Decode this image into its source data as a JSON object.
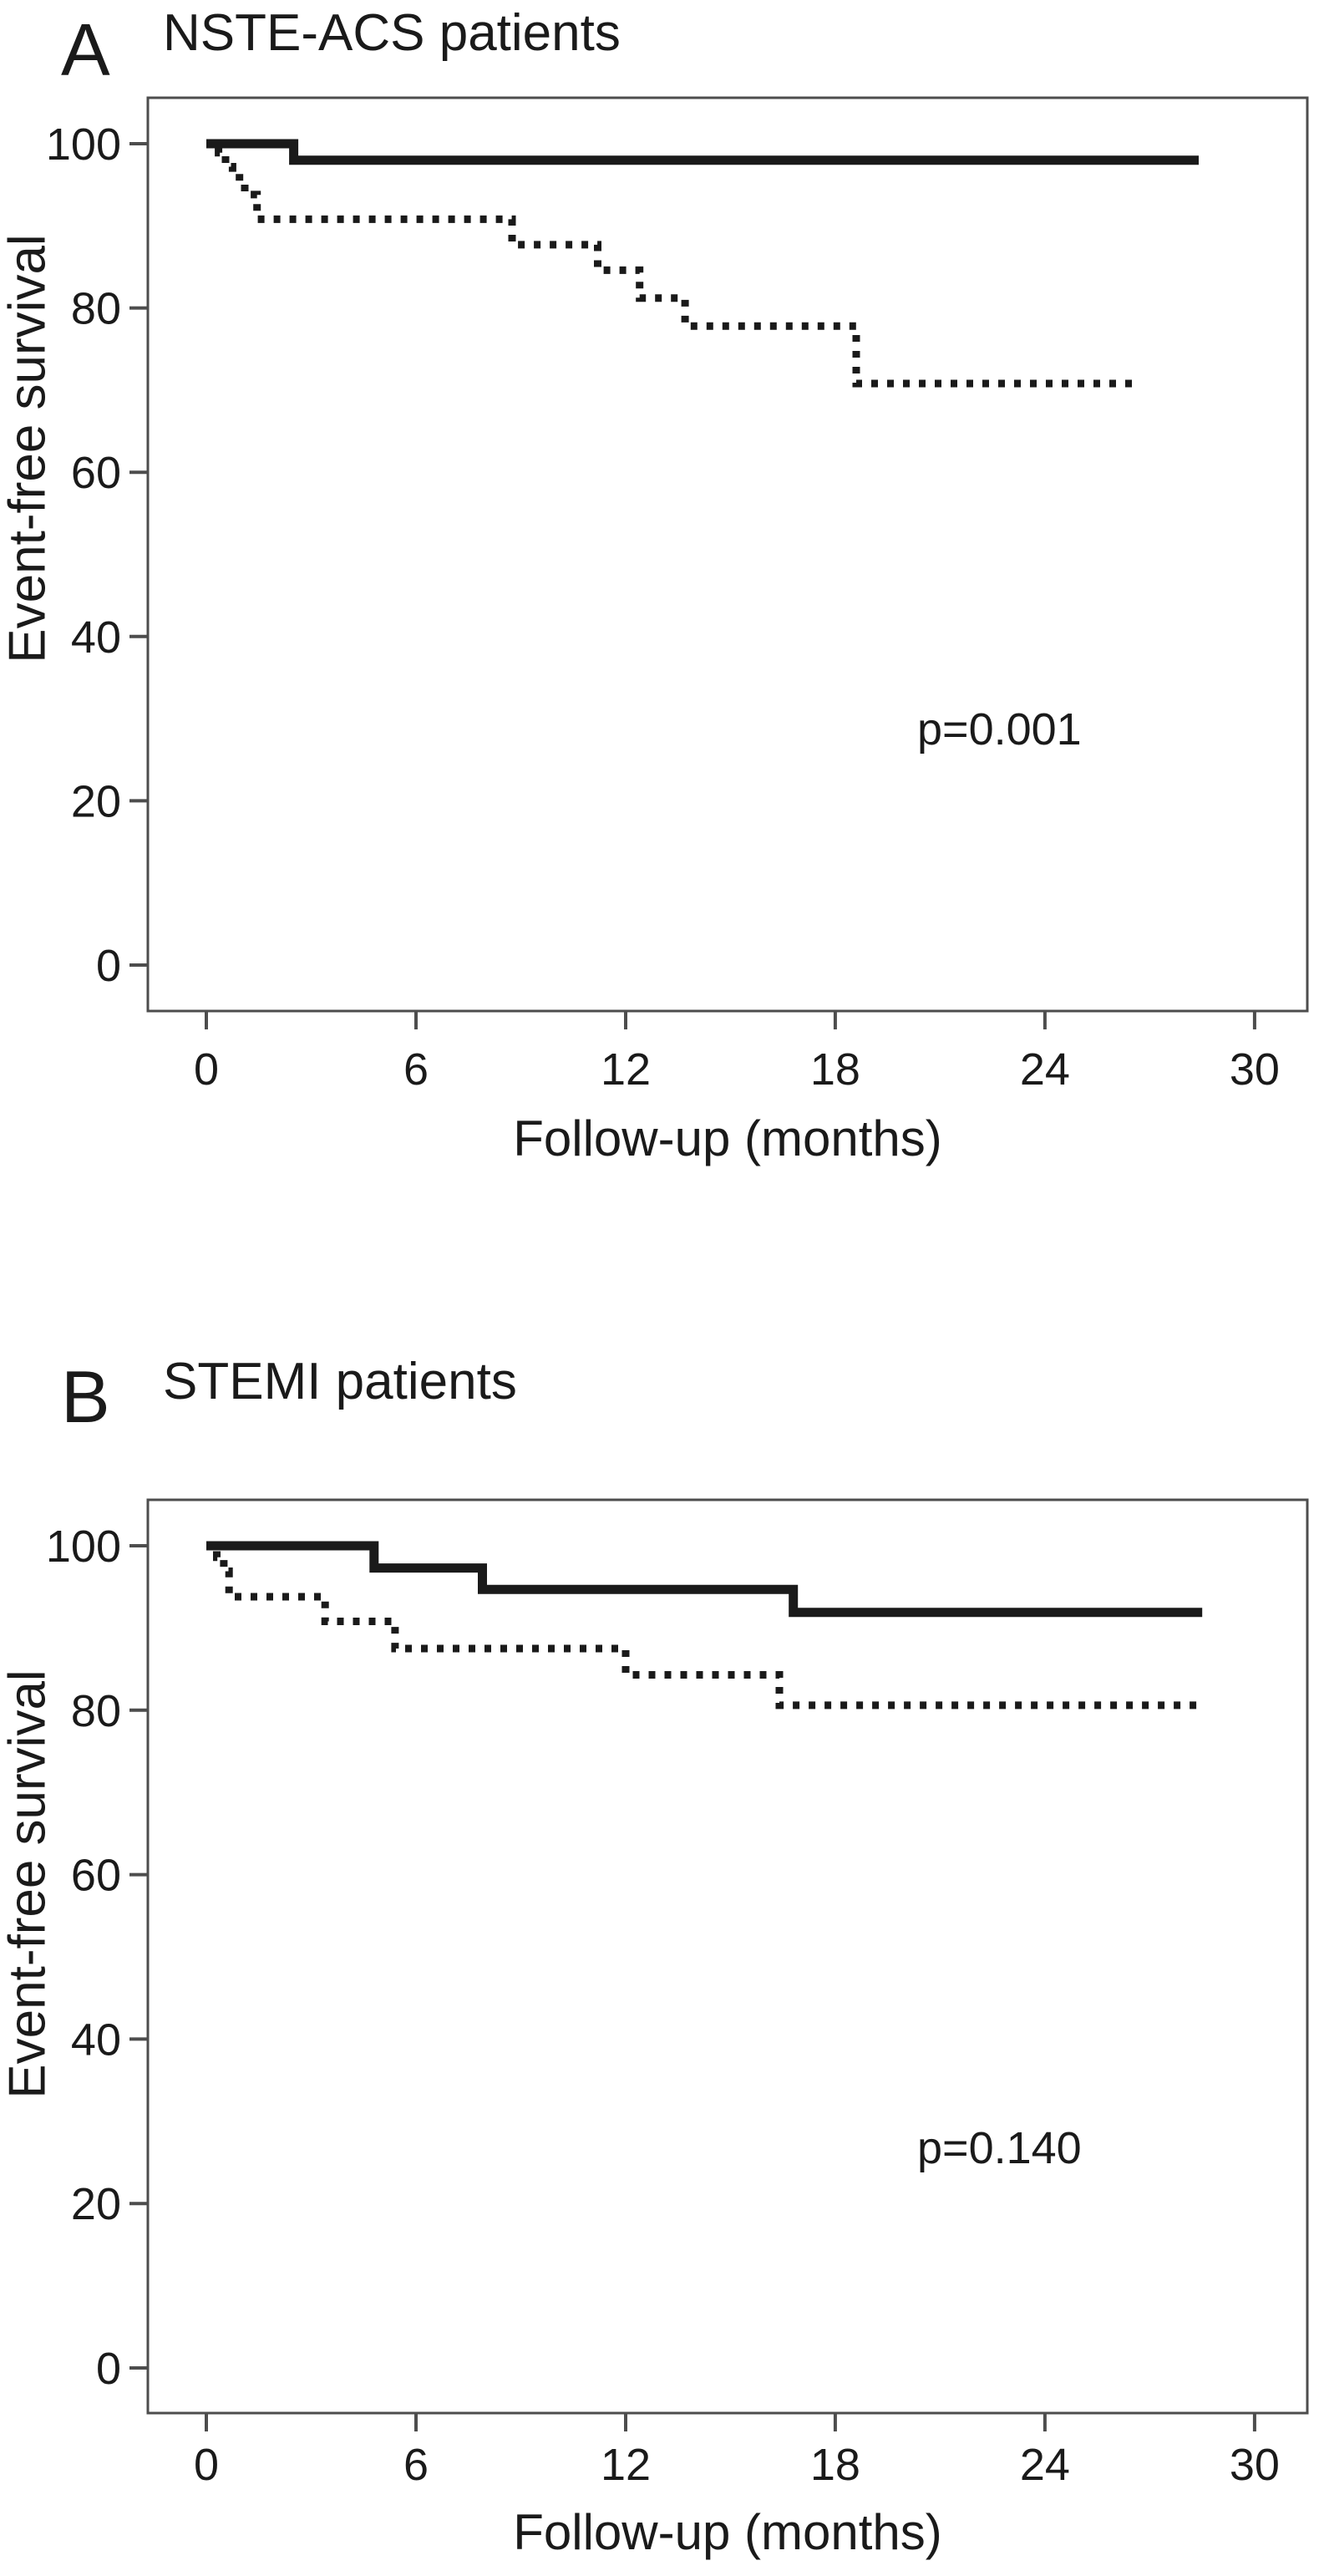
{
  "figure": {
    "background": "#ffffff",
    "ink_color": "#1a1a1a",
    "axis_color": "#4d4d4d"
  },
  "panels": [
    {
      "letter": "A",
      "title": "NSTE-ACS patients",
      "ylabel": "Event-free survival",
      "xlabel": "Follow-up (months)",
      "p_label": "p=0.001"
    },
    {
      "letter": "B",
      "title": "STEMI patients",
      "ylabel": "Event-free survival",
      "xlabel": "Follow-up (months)",
      "p_label": "p=0.140"
    }
  ],
  "chart_data": [
    {
      "type": "line",
      "subtype": "kaplan-meier-step",
      "panel": "A",
      "title": "NSTE-ACS patients",
      "xlabel": "Follow-up (months)",
      "ylabel": "Event-free survival",
      "annotation": "p=0.001",
      "xlim": [
        -1.7,
        31.6
      ],
      "ylim": [
        -5.5,
        105.5
      ],
      "xticks": [
        0,
        6,
        12,
        18,
        24,
        30
      ],
      "yticks": [
        0,
        20,
        40,
        60,
        80,
        100
      ],
      "grid": false,
      "legend": "none",
      "series": [
        {
          "name": "solid-curve",
          "style": "solid",
          "start_value": 100,
          "steps": [
            [
              2.5,
              98.0
            ]
          ],
          "end_x": 28.4
        },
        {
          "name": "dotted-curve",
          "style": "dotted",
          "start_value": 100,
          "steps": [
            [
              0.35,
              98.9
            ],
            [
              0.55,
              97.2
            ],
            [
              0.75,
              96.4
            ],
            [
              0.95,
              95.2
            ],
            [
              1.1,
              93.8
            ],
            [
              1.45,
              90.8
            ],
            [
              8.75,
              87.7
            ],
            [
              11.2,
              84.6
            ],
            [
              12.4,
              81.2
            ],
            [
              13.7,
              77.8
            ],
            [
              18.6,
              70.8
            ]
          ],
          "end_x": 26.5
        }
      ]
    },
    {
      "type": "line",
      "subtype": "kaplan-meier-step",
      "panel": "B",
      "title": "STEMI patients",
      "xlabel": "Follow-up (months)",
      "ylabel": "Event-free survival",
      "annotation": "p=0.140",
      "xlim": [
        -1.7,
        31.6
      ],
      "ylim": [
        -5.5,
        105.5
      ],
      "xticks": [
        0,
        6,
        12,
        18,
        24,
        30
      ],
      "yticks": [
        0,
        20,
        40,
        60,
        80,
        100
      ],
      "grid": false,
      "legend": "none",
      "series": [
        {
          "name": "solid-curve",
          "style": "solid",
          "start_value": 100,
          "steps": [
            [
              4.8,
              97.3
            ],
            [
              7.9,
              94.7
            ],
            [
              16.8,
              91.9
            ]
          ],
          "end_x": 28.5
        },
        {
          "name": "dotted-curve",
          "style": "dotted",
          "start_value": 100,
          "steps": [
            [
              0.3,
              98.6
            ],
            [
              0.5,
              96.9
            ],
            [
              0.65,
              93.8
            ],
            [
              3.4,
              90.8
            ],
            [
              5.4,
              87.5
            ],
            [
              12.0,
              84.3
            ],
            [
              16.4,
              80.6
            ]
          ],
          "end_x": 28.4
        }
      ]
    }
  ]
}
